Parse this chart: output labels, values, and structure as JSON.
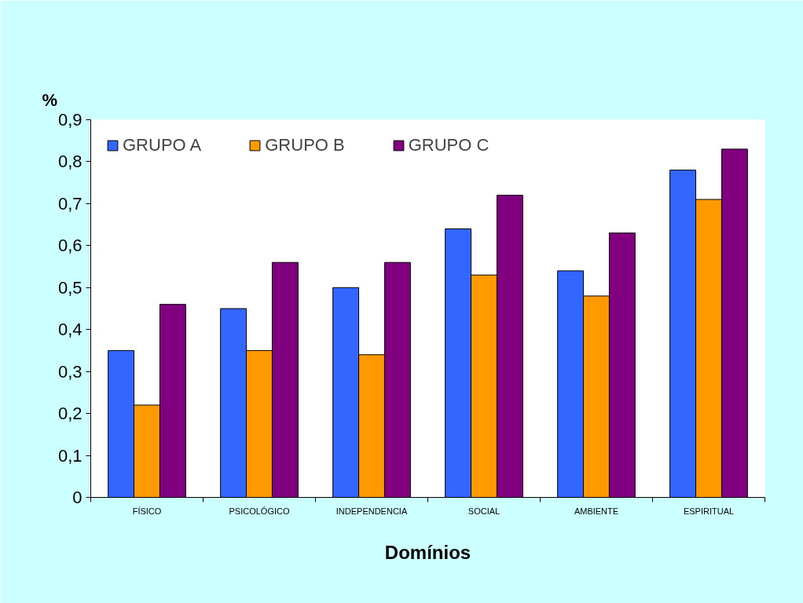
{
  "chart_data": {
    "type": "bar",
    "ylabel": "%",
    "xlabel": "Domínios",
    "categories": [
      "FÍSICO",
      "PSICOLÓGICO",
      "INDEPENDENCIA",
      "SOCIAL",
      "AMBIENTE",
      "ESPIRITUAL"
    ],
    "series": [
      {
        "name": "GRUPO A",
        "color": "#3366ff",
        "values": [
          0.35,
          0.45,
          0.5,
          0.64,
          0.54,
          0.78
        ]
      },
      {
        "name": "GRUPO B",
        "color": "#ff9900",
        "values": [
          0.22,
          0.35,
          0.34,
          0.53,
          0.48,
          0.71
        ]
      },
      {
        "name": "GRUPO C",
        "color": "#800080",
        "values": [
          0.46,
          0.56,
          0.56,
          0.72,
          0.63,
          0.83
        ]
      }
    ],
    "ylim": [
      0,
      0.9
    ],
    "yticks": [
      {
        "value": 0,
        "label": "0"
      },
      {
        "value": 0.1,
        "label": "0,1"
      },
      {
        "value": 0.2,
        "label": "0,2"
      },
      {
        "value": 0.3,
        "label": "0,3"
      },
      {
        "value": 0.4,
        "label": "0,4"
      },
      {
        "value": 0.5,
        "label": "0,5"
      },
      {
        "value": 0.6,
        "label": "0,6"
      },
      {
        "value": 0.7,
        "label": "0,7"
      },
      {
        "value": 0.8,
        "label": "0,8"
      },
      {
        "value": 0.9,
        "label": "0,9"
      }
    ],
    "grid": false,
    "legend": "top left"
  }
}
